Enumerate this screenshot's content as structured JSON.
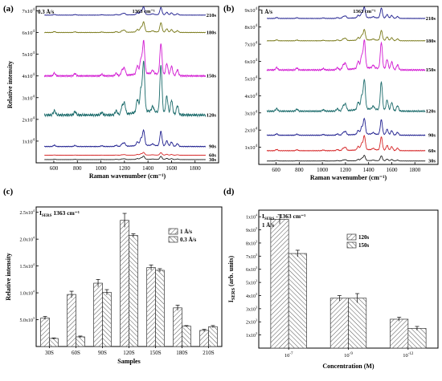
{
  "panel_letters": [
    "(a)",
    "(b)",
    "(c)",
    "(d)"
  ],
  "chart_data": [
    {
      "type": "line",
      "panel": "(a)",
      "corner_label": "0.3 Å/s",
      "peak_label": "1363 cm⁻¹",
      "xlabel": "Raman wavenumber (cm⁻¹)",
      "ylabel": "Relative intensity",
      "xlim": [
        450,
        2000
      ],
      "ylim": [
        0,
        72000
      ],
      "xticks": [
        600,
        800,
        1000,
        1200,
        1400,
        1600,
        1800
      ],
      "yticks": [
        {
          "v": 10000,
          "mant": "1x10",
          "exp": "4"
        },
        {
          "v": 20000,
          "mant": "2x10",
          "exp": "4"
        },
        {
          "v": 30000,
          "mant": "3x10",
          "exp": "4"
        },
        {
          "v": 40000,
          "mant": "4x10",
          "exp": "4"
        },
        {
          "v": 50000,
          "mant": "5x10",
          "exp": "4"
        },
        {
          "v": 60000,
          "mant": "6x10",
          "exp": "4"
        },
        {
          "v": 70000,
          "mant": "7x10",
          "exp": "4"
        }
      ],
      "peaks": [
        [
          605,
          9
        ],
        [
          780,
          7
        ],
        [
          1008,
          5
        ],
        [
          1130,
          8
        ],
        [
          1180,
          16
        ],
        [
          1200,
          22
        ],
        [
          1310,
          26
        ],
        [
          1340,
          45
        ],
        [
          1363,
          100
        ],
        [
          1440,
          10
        ],
        [
          1510,
          95
        ],
        [
          1560,
          35
        ],
        [
          1600,
          28
        ],
        [
          1650,
          18
        ]
      ],
      "series": [
        {
          "name": "30s",
          "baseline": 1500,
          "amp": 1500,
          "color": "#222222"
        },
        {
          "name": "60s",
          "baseline": 3500,
          "amp": 1200,
          "color": "#d62728"
        },
        {
          "name": "90s",
          "baseline": 7500,
          "amp": 7000,
          "color": "#1f1f8f"
        },
        {
          "name": "120s",
          "baseline": 22000,
          "amp": 23000,
          "color": "#1b6b6b"
        },
        {
          "name": "150s",
          "baseline": 40000,
          "amp": 15000,
          "color": "#d21ad2"
        },
        {
          "name": "180s",
          "baseline": 60000,
          "amp": 4500,
          "color": "#7b7b1c"
        },
        {
          "name": "210s",
          "baseline": 68000,
          "amp": 3500,
          "color": "#1f1f8f"
        }
      ]
    },
    {
      "type": "line",
      "panel": "(b)",
      "corner_label": "1 Å/s",
      "peak_label": "1363 cm⁻¹",
      "xlabel": "Raman wavenumber (cm⁻¹)",
      "ylabel": "",
      "xlim": [
        450,
        2000
      ],
      "ylim": [
        0,
        92000
      ],
      "xticks": [
        600,
        800,
        1000,
        1200,
        1400,
        1600,
        1800
      ],
      "yticks": [
        {
          "v": 10000,
          "mant": "1x10",
          "exp": "4"
        },
        {
          "v": 20000,
          "mant": "2x10",
          "exp": "4"
        },
        {
          "v": 30000,
          "mant": "3x10",
          "exp": "4"
        },
        {
          "v": 40000,
          "mant": "4x10",
          "exp": "4"
        },
        {
          "v": 50000,
          "mant": "5x10",
          "exp": "4"
        },
        {
          "v": 60000,
          "mant": "6x10",
          "exp": "4"
        },
        {
          "v": 70000,
          "mant": "7x10",
          "exp": "4"
        },
        {
          "v": 80000,
          "mant": "8x10",
          "exp": "4"
        },
        {
          "v": 90000,
          "mant": "9x10",
          "exp": "4"
        }
      ],
      "peaks": [
        [
          605,
          9
        ],
        [
          780,
          7
        ],
        [
          1008,
          5
        ],
        [
          1130,
          8
        ],
        [
          1180,
          16
        ],
        [
          1200,
          22
        ],
        [
          1310,
          26
        ],
        [
          1340,
          45
        ],
        [
          1363,
          100
        ],
        [
          1440,
          10
        ],
        [
          1510,
          95
        ],
        [
          1560,
          35
        ],
        [
          1600,
          28
        ],
        [
          1650,
          18
        ]
      ],
      "series": [
        {
          "name": "30s",
          "baseline": 2000,
          "amp": 3000,
          "color": "#222222"
        },
        {
          "name": "60s",
          "baseline": 8000,
          "amp": 8000,
          "color": "#d62728"
        },
        {
          "name": "90s",
          "baseline": 17000,
          "amp": 9000,
          "color": "#1f1f8f"
        },
        {
          "name": "120s",
          "baseline": 31000,
          "amp": 17000,
          "color": "#1b6b6b"
        },
        {
          "name": "150s",
          "baseline": 55000,
          "amp": 16000,
          "color": "#d21ad2"
        },
        {
          "name": "180s",
          "baseline": 72000,
          "amp": 6000,
          "color": "#7b7b1c"
        },
        {
          "name": "210s",
          "baseline": 85000,
          "amp": 6000,
          "color": "#1f1f8f"
        }
      ]
    },
    {
      "type": "bar",
      "panel": "(c)",
      "title_main": "I",
      "title_sub": "SERS",
      "title_rest": " 1363 cm⁻¹",
      "xlabel": "Samples",
      "ylabel": "Relative intensity",
      "ylim": [
        0,
        26000
      ],
      "categories": [
        "30S",
        "60S",
        "90S",
        "120S",
        "150S",
        "180S",
        "210S"
      ],
      "yticks": [
        {
          "v": 5000,
          "mant": "5.0x10",
          "exp": "3"
        },
        {
          "v": 10000,
          "mant": "1.0x10",
          "exp": "4"
        },
        {
          "v": 15000,
          "mant": "1.5x10",
          "exp": "4"
        },
        {
          "v": 20000,
          "mant": "2.0x10",
          "exp": "4"
        },
        {
          "v": 25000,
          "mant": "2.5x10",
          "exp": "4"
        }
      ],
      "legend": [
        "1 Å/s",
        "0.3 Å/s"
      ],
      "series": [
        {
          "name": "1 Å/s",
          "values": [
            5300,
            9700,
            11800,
            23500,
            14700,
            7200,
            3000
          ],
          "errors": [
            300,
            600,
            700,
            1300,
            500,
            500,
            200
          ]
        },
        {
          "name": "0.3 Å/s",
          "values": [
            1500,
            1800,
            10100,
            20700,
            14200,
            3800,
            3700
          ],
          "errors": [
            100,
            150,
            500,
            300,
            300,
            100,
            200
          ]
        }
      ]
    },
    {
      "type": "bar",
      "panel": "(d)",
      "title_main": "I",
      "title_sub": "SERS",
      "title_rest": " - 1363 cm⁻¹",
      "rate_label": "1 Å/s",
      "xlabel": "Concentration (M)",
      "ylabel_main": "I",
      "ylabel_sub": "SERS",
      "ylabel_rest": " (arb. units)",
      "ylim": [
        0,
        10500
      ],
      "categories": [
        {
          "base": "10",
          "exp": "-7"
        },
        {
          "base": "10",
          "exp": "-9"
        },
        {
          "base": "10",
          "exp": "-12"
        }
      ],
      "yticks": [
        {
          "v": 1000,
          "mant": "1x10",
          "exp": "3"
        },
        {
          "v": 2000,
          "mant": "2x10",
          "exp": "3"
        },
        {
          "v": 3000,
          "mant": "3x10",
          "exp": "3"
        },
        {
          "v": 4000,
          "mant": "4x10",
          "exp": "3"
        },
        {
          "v": 5000,
          "mant": "5x10",
          "exp": "3"
        },
        {
          "v": 6000,
          "mant": "6x10",
          "exp": "3"
        },
        {
          "v": 7000,
          "mant": "7x10",
          "exp": "3"
        },
        {
          "v": 8000,
          "mant": "8x10",
          "exp": "3"
        },
        {
          "v": 9000,
          "mant": "9x10",
          "exp": "3"
        },
        {
          "v": 10000,
          "mant": "1x10",
          "exp": "4"
        }
      ],
      "legend": [
        "120s",
        "150s"
      ],
      "series": [
        {
          "name": "120s",
          "values": [
            9800,
            3800,
            2200
          ],
          "errors": [
            350,
            200,
            150
          ]
        },
        {
          "name": "150s",
          "values": [
            7200,
            3800,
            1500
          ],
          "errors": [
            250,
            350,
            150
          ]
        }
      ]
    }
  ]
}
